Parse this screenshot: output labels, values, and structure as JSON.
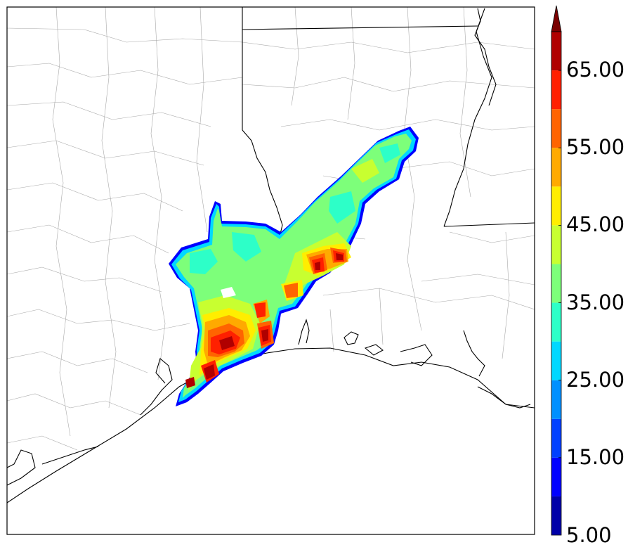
{
  "colorbar": {
    "min_label": "5.00",
    "tick_labels": [
      "15.00",
      "25.00",
      "35.00",
      "45.00",
      "55.00",
      "65.00"
    ],
    "tick_values": [
      15,
      25,
      35,
      45,
      55,
      65
    ],
    "range": [
      5,
      70
    ],
    "extend": "max",
    "levels": [
      {
        "from": 5,
        "to": 10,
        "color": "#0000a8"
      },
      {
        "from": 10,
        "to": 15,
        "color": "#0000ff"
      },
      {
        "from": 15,
        "to": 20,
        "color": "#0040ff"
      },
      {
        "from": 20,
        "to": 25,
        "color": "#0090ff"
      },
      {
        "from": 25,
        "to": 30,
        "color": "#00d8ff"
      },
      {
        "from": 30,
        "to": 35,
        "color": "#2dffc8"
      },
      {
        "from": 35,
        "to": 40,
        "color": "#7dff7a"
      },
      {
        "from": 40,
        "to": 45,
        "color": "#c8ff30"
      },
      {
        "from": 45,
        "to": 50,
        "color": "#ffee00"
      },
      {
        "from": 50,
        "to": 55,
        "color": "#ffaa00"
      },
      {
        "from": 55,
        "to": 60,
        "color": "#ff6400"
      },
      {
        "from": 60,
        "to": 65,
        "color": "#ff2000"
      },
      {
        "from": 65,
        "to": 70,
        "color": "#b00000"
      }
    ],
    "overflow_color": "#7a0000"
  },
  "map": {
    "region": "Texas–Louisiana Gulf Coast",
    "features": [
      "county-boundaries",
      "state-boundaries",
      "coastline",
      "filled-contours"
    ]
  }
}
